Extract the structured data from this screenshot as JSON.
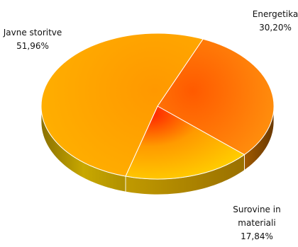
{
  "chart_data": {
    "type": "pie",
    "title": "",
    "series": [
      {
        "slices": [
          {
            "label": "Energetika",
            "label_lines": [
              "Energetika"
            ],
            "value_text": "30,20%",
            "value": 30.2,
            "color": "#FF8C00"
          },
          {
            "label": "Surovine in materiali",
            "label_lines": [
              "Surovine in",
              "materiali"
            ],
            "value_text": "17,84%",
            "value": 17.84,
            "color": "#FFC000"
          },
          {
            "label": "Javne storitve",
            "label_lines": [
              "Javne storitve"
            ],
            "value_text": "51,96%",
            "value": 51.96,
            "color": "#FFA500"
          }
        ]
      }
    ],
    "legend": "none",
    "style": "3d-tilted",
    "start_direction": "top-right",
    "direction": "clockwise"
  }
}
